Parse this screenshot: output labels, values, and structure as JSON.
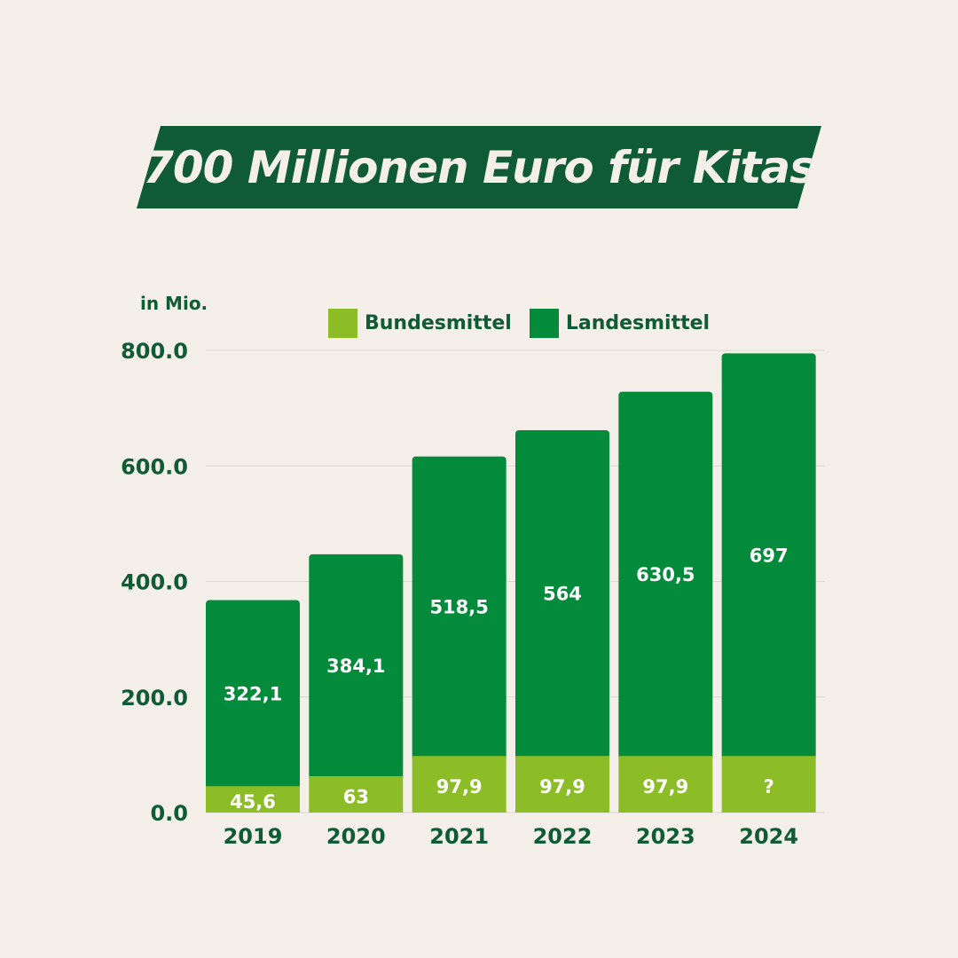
{
  "title": "700 Millionen Euro für Kitas",
  "unit_label": "in Mio.",
  "colors": {
    "background": "#f4efe8",
    "title_banner": "#0e5b35",
    "bundesmittel": "#8cbd26",
    "landesmittel": "#038a3a",
    "text": "#0e5b35",
    "grid": "#dcd8d0"
  },
  "legend": {
    "bundesmittel": "Bundesmittel",
    "landesmittel": "Landesmittel"
  },
  "chart_data": {
    "type": "bar",
    "stacked": true,
    "categories": [
      "2019",
      "2020",
      "2021",
      "2022",
      "2023",
      "2024"
    ],
    "series": [
      {
        "name": "Bundesmittel",
        "values": [
          45.6,
          63,
          97.9,
          97.9,
          97.9,
          97.9
        ],
        "labels": [
          "45,6",
          "63",
          "97,9",
          "97,9",
          "97,9",
          "?"
        ]
      },
      {
        "name": "Landesmittel",
        "values": [
          322.1,
          384.1,
          518.5,
          564,
          630.5,
          697
        ],
        "labels": [
          "322,1",
          "384,1",
          "518,5",
          "564",
          "630,5",
          "697"
        ]
      }
    ],
    "ylim": [
      0,
      800
    ],
    "yticks": [
      0,
      200,
      400,
      600,
      800
    ],
    "ytick_labels": [
      "0.0",
      "200.0",
      "400.0",
      "600.0",
      "800.0"
    ],
    "grid": true,
    "legend_position": "top"
  }
}
